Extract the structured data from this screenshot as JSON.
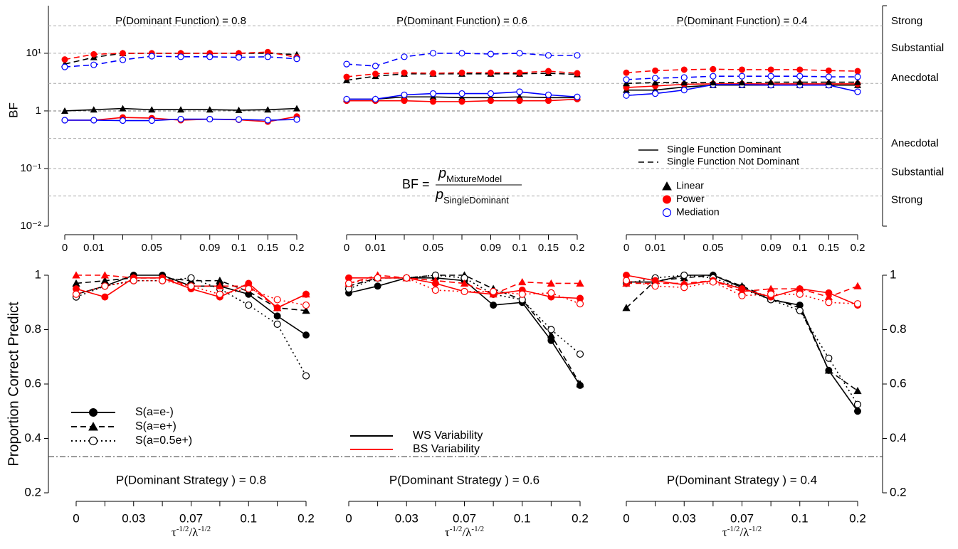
{
  "chart_data": [
    {
      "type": "line",
      "y_label": "BF",
      "log_scale": true,
      "ylim": [
        0.01,
        67
      ],
      "yticks": [
        {
          "value": 10,
          "label": "10¹"
        },
        {
          "value": 1,
          "label": "1"
        },
        {
          "value": 0.1,
          "label": "10⁻¹"
        },
        {
          "value": 0.01,
          "label": "10⁻²"
        }
      ],
      "y2ticks": [
        {
          "value": 36,
          "label": "Strong"
        },
        {
          "value": 12.2,
          "label": "Substantial"
        },
        {
          "value": 3.7,
          "label": "Anecdotal"
        },
        {
          "value": 0.27,
          "label": "Anecdotal"
        },
        {
          "value": 0.085,
          "label": "Substantial"
        },
        {
          "value": 0.028,
          "label": "Strong"
        }
      ],
      "reference_lines": [
        30,
        10,
        3,
        1,
        0.3333,
        0.1,
        0.0333
      ],
      "legend_lines": [
        {
          "label": "Single Function Dominant",
          "dash": "solid"
        },
        {
          "label": "Single Function Not Dominant",
          "dash": "dashed"
        }
      ],
      "legend_markers": [
        {
          "label": "Linear",
          "shape": "triangle",
          "color": "#000000"
        },
        {
          "label": "Power",
          "shape": "circle-filled",
          "color": "#ff0000"
        },
        {
          "label": "Mediation",
          "shape": "circle-open",
          "color": "#0000ff"
        }
      ],
      "formula": {
        "lhs": "BF =",
        "numerator": "p",
        "numerator_sub": "MixtureModel",
        "denominator": "p",
        "denominator_sub": "SingleDominant"
      },
      "panels": [
        {
          "title": "P(Dominant Function) = 0.8",
          "categories": [
            "0",
            "0.01",
            null,
            "0.05",
            null,
            "0.09",
            "0.1",
            "0.15",
            "0.2"
          ],
          "series": [
            {
              "color": "#000000",
              "shape": "triangle",
              "dash": "solid",
              "values": [
                1.0,
                1.05,
                1.1,
                1.05,
                1.05,
                1.05,
                1.03,
                1.05,
                1.1
              ]
            },
            {
              "color": "#ff0000",
              "shape": "circle-filled",
              "dash": "solid",
              "values": [
                0.69,
                0.69,
                0.77,
                0.75,
                0.69,
                0.72,
                0.7,
                0.65,
                0.8
              ]
            },
            {
              "color": "#0000ff",
              "shape": "circle-open",
              "dash": "solid",
              "values": [
                0.69,
                0.69,
                0.68,
                0.68,
                0.72,
                0.72,
                0.71,
                0.69,
                0.71
              ]
            },
            {
              "color": "#000000",
              "shape": "triangle",
              "dash": "dashed",
              "values": [
                6.5,
                8.5,
                10,
                10,
                10,
                10,
                10,
                10,
                9.5
              ]
            },
            {
              "color": "#ff0000",
              "shape": "circle-filled",
              "dash": "dashed",
              "values": [
                7.8,
                9.6,
                10,
                10,
                10,
                10,
                10,
                10.5,
                8.5
              ]
            },
            {
              "color": "#0000ff",
              "shape": "circle-open",
              "dash": "dashed",
              "values": [
                5.8,
                6.3,
                7.7,
                8.9,
                8.7,
                8.7,
                8.5,
                8.7,
                8.0
              ]
            }
          ]
        },
        {
          "title": "P(Dominant Function) = 0.6",
          "categories": [
            "0",
            "0.01",
            null,
            "0.05",
            null,
            "0.09",
            "0.1",
            "0.15",
            "0.2"
          ],
          "series": [
            {
              "color": "#000000",
              "shape": "triangle",
              "dash": "solid",
              "values": [
                1.6,
                1.6,
                1.75,
                1.75,
                1.7,
                1.7,
                1.75,
                1.7,
                1.7
              ]
            },
            {
              "color": "#ff0000",
              "shape": "circle-filled",
              "dash": "solid",
              "values": [
                1.5,
                1.5,
                1.5,
                1.45,
                1.45,
                1.5,
                1.5,
                1.5,
                1.6
              ]
            },
            {
              "color": "#0000ff",
              "shape": "circle-open",
              "dash": "solid",
              "values": [
                1.6,
                1.6,
                1.9,
                2.0,
                2.0,
                2.0,
                2.15,
                1.9,
                1.75
              ]
            },
            {
              "color": "#000000",
              "shape": "triangle",
              "dash": "dashed",
              "values": [
                3.4,
                4.0,
                4.4,
                4.4,
                4.4,
                4.4,
                4.4,
                4.5,
                4.3
              ]
            },
            {
              "color": "#ff0000",
              "shape": "circle-filled",
              "dash": "dashed",
              "values": [
                3.9,
                4.4,
                4.6,
                4.5,
                4.6,
                4.6,
                4.6,
                4.9,
                4.5
              ]
            },
            {
              "color": "#0000ff",
              "shape": "circle-open",
              "dash": "dashed",
              "values": [
                6.5,
                6.0,
                8.7,
                10,
                10,
                9.7,
                10,
                9.2,
                9.2
              ]
            }
          ]
        },
        {
          "title": "P(Dominant Function) = 0.4",
          "categories": [
            "0",
            "0.01",
            null,
            "0.05",
            null,
            "0.09",
            "0.1",
            "0.15",
            "0.2"
          ],
          "series": [
            {
              "color": "#000000",
              "shape": "triangle",
              "dash": "solid",
              "values": [
                2.3,
                2.3,
                2.6,
                2.8,
                2.8,
                2.8,
                2.8,
                2.8,
                2.8
              ]
            },
            {
              "color": "#ff0000",
              "shape": "circle-filled",
              "dash": "solid",
              "values": [
                2.55,
                2.7,
                2.9,
                2.95,
                2.95,
                2.95,
                2.95,
                2.95,
                2.95
              ]
            },
            {
              "color": "#0000ff",
              "shape": "circle-open",
              "dash": "solid",
              "values": [
                1.85,
                2.0,
                2.3,
                2.85,
                2.85,
                2.8,
                2.8,
                2.8,
                2.15
              ]
            },
            {
              "color": "#000000",
              "shape": "triangle",
              "dash": "dashed",
              "values": [
                3.0,
                3.1,
                3.1,
                3.1,
                3.1,
                3.15,
                3.15,
                3.15,
                3.15
              ]
            },
            {
              "color": "#ff0000",
              "shape": "circle-filled",
              "dash": "dashed",
              "values": [
                4.6,
                5.0,
                5.2,
                5.3,
                5.2,
                5.2,
                5.2,
                5.0,
                4.9
              ]
            },
            {
              "color": "#0000ff",
              "shape": "circle-open",
              "dash": "dashed",
              "values": [
                3.5,
                3.7,
                3.8,
                4.0,
                4.0,
                4.0,
                4.0,
                3.9,
                3.9
              ]
            }
          ]
        }
      ]
    },
    {
      "type": "line",
      "y_label": "Proportion Correct Predict",
      "x_label_parts": [
        {
          "text": "τ"
        },
        {
          "sup": "-1/2"
        },
        {
          "text": "/λ"
        },
        {
          "sup": "-1/2"
        }
      ],
      "ylim": [
        0.2,
        1.0
      ],
      "yticks": [
        0.2,
        0.4,
        0.6,
        0.8,
        1
      ],
      "y2ticks": [
        0.2,
        0.4,
        0.6,
        0.8,
        1
      ],
      "chance_line": 0.333,
      "legend_styles": [
        {
          "label": "S(a=e-)",
          "shape": "circle-filled",
          "dash": "solid"
        },
        {
          "label": "S(a=e+)",
          "shape": "triangle",
          "dash": "dashed"
        },
        {
          "label": "S(a=0.5e+)",
          "shape": "circle-open",
          "dash": "dotted"
        }
      ],
      "legend_colors": [
        {
          "label": "WS Variability",
          "color": "#000000"
        },
        {
          "label": "BS Variability",
          "color": "#ff0000"
        }
      ],
      "panels": [
        {
          "title": "P(Dominant  Strategy ) = 0.8",
          "categories": [
            "0",
            null,
            "0.03",
            null,
            "0.07",
            null,
            "0.1",
            null,
            "0.2"
          ],
          "series": [
            {
              "color": "#000000",
              "shape": "circle-filled",
              "dash": "solid",
              "values": [
                0.93,
                0.96,
                1.0,
                1.0,
                0.96,
                0.96,
                0.93,
                0.85,
                0.78
              ]
            },
            {
              "color": "#000000",
              "shape": "triangle",
              "dash": "dashed",
              "values": [
                0.97,
                0.98,
                0.99,
                0.99,
                0.98,
                0.98,
                0.94,
                0.88,
                0.87
              ]
            },
            {
              "color": "#000000",
              "shape": "circle-open",
              "dash": "dotted",
              "values": [
                0.92,
                0.96,
                0.98,
                0.98,
                0.99,
                0.95,
                0.89,
                0.82,
                0.63
              ]
            },
            {
              "color": "#ff0000",
              "shape": "circle-filled",
              "dash": "solid",
              "values": [
                0.95,
                0.92,
                0.99,
                0.99,
                0.95,
                0.92,
                0.97,
                0.88,
                0.93
              ]
            },
            {
              "color": "#ff0000",
              "shape": "triangle",
              "dash": "dashed",
              "values": [
                1.0,
                1.0,
                0.99,
                0.99,
                0.96,
                0.96,
                0.96,
                0.88,
                0.93
              ]
            },
            {
              "color": "#ff0000",
              "shape": "circle-open",
              "dash": "dotted",
              "values": [
                0.93,
                0.96,
                0.98,
                0.98,
                0.96,
                0.93,
                0.95,
                0.91,
                0.89
              ]
            }
          ]
        },
        {
          "title": "P(Dominant  Strategy ) = 0.6",
          "categories": [
            "0",
            null,
            "0.03",
            null,
            "0.07",
            null,
            "0.1",
            null,
            "0.2"
          ],
          "series": [
            {
              "color": "#000000",
              "shape": "circle-filled",
              "dash": "solid",
              "values": [
                0.935,
                0.96,
                0.99,
                0.99,
                0.98,
                0.89,
                0.9,
                0.76,
                0.595
              ]
            },
            {
              "color": "#000000",
              "shape": "triangle",
              "dash": "dashed",
              "values": [
                0.96,
                0.99,
                0.99,
                1.0,
                1.0,
                0.95,
                0.91,
                0.78,
                0.6
              ]
            },
            {
              "color": "#000000",
              "shape": "circle-open",
              "dash": "dotted",
              "values": [
                0.95,
                0.99,
                0.99,
                1.0,
                0.99,
                0.93,
                0.91,
                0.8,
                0.71
              ]
            },
            {
              "color": "#ff0000",
              "shape": "circle-filled",
              "dash": "solid",
              "values": [
                0.99,
                0.99,
                0.99,
                0.97,
                0.94,
                0.93,
                0.945,
                0.92,
                0.915
              ]
            },
            {
              "color": "#ff0000",
              "shape": "triangle",
              "dash": "dashed",
              "values": [
                0.97,
                1.0,
                0.99,
                0.98,
                0.97,
                0.93,
                0.975,
                0.97,
                0.97
              ]
            },
            {
              "color": "#ff0000",
              "shape": "circle-open",
              "dash": "dotted",
              "values": [
                0.97,
                0.99,
                0.99,
                0.945,
                0.94,
                0.94,
                0.93,
                0.935,
                0.895
              ]
            }
          ]
        },
        {
          "title": "P(Dominant  Strategy ) = 0.4",
          "categories": [
            "0",
            null,
            "0.03",
            null,
            "0.07",
            null,
            "0.1",
            null,
            "0.2"
          ],
          "series": [
            {
              "color": "#000000",
              "shape": "circle-filled",
              "dash": "solid",
              "values": [
                0.975,
                0.975,
                1.0,
                1.0,
                0.955,
                0.91,
                0.89,
                0.65,
                0.5
              ]
            },
            {
              "color": "#000000",
              "shape": "triangle",
              "dash": "dashed",
              "values": [
                0.88,
                0.98,
                0.99,
                1.0,
                0.96,
                0.915,
                0.88,
                0.65,
                0.575
              ]
            },
            {
              "color": "#000000",
              "shape": "circle-open",
              "dash": "dotted",
              "values": [
                0.97,
                0.99,
                1.0,
                0.99,
                0.95,
                0.91,
                0.87,
                0.695,
                0.525
              ]
            },
            {
              "color": "#ff0000",
              "shape": "circle-filled",
              "dash": "solid",
              "values": [
                1.0,
                0.98,
                0.965,
                0.98,
                0.95,
                0.92,
                0.95,
                0.935,
                0.89
              ]
            },
            {
              "color": "#ff0000",
              "shape": "triangle",
              "dash": "dashed",
              "values": [
                0.97,
                0.97,
                0.97,
                0.98,
                0.94,
                0.95,
                0.95,
                0.92,
                0.96
              ]
            },
            {
              "color": "#ff0000",
              "shape": "circle-open",
              "dash": "dotted",
              "values": [
                0.98,
                0.96,
                0.955,
                0.975,
                0.925,
                0.93,
                0.93,
                0.9,
                0.895
              ]
            }
          ]
        }
      ]
    }
  ]
}
